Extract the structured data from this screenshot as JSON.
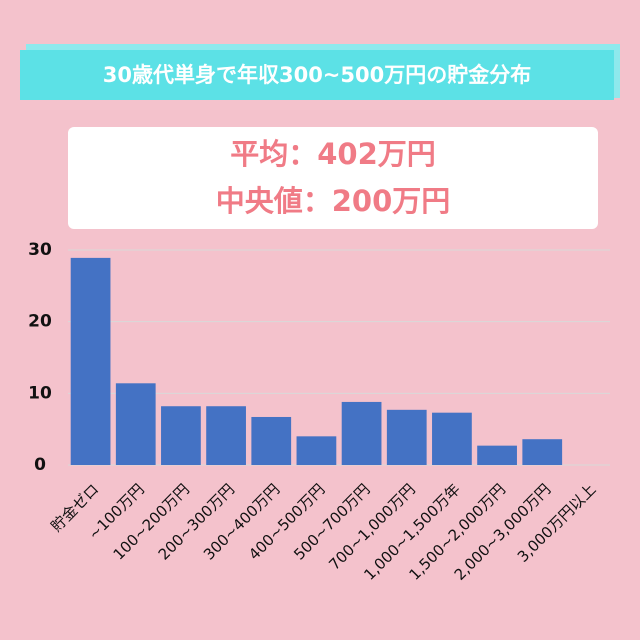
{
  "chart_data": {
    "type": "bar",
    "title": "30歳代単身で年収300~500万円の貯金分布",
    "annotations": [
      "平均：402万円",
      "中央値：200万円"
    ],
    "categories": [
      "貯金ゼロ",
      "~100万円",
      "100~200万円",
      "200~300万円",
      "300~400万円",
      "400~500万円",
      "500~700万円",
      "700~1,000万円",
      "1,000~1,500万年",
      "1,500~2,000万円",
      "2,000~3,000万円",
      "3,000万円以上"
    ],
    "values": [
      28.9,
      11.4,
      8.2,
      8.2,
      6.7,
      4.0,
      8.8,
      7.7,
      7.3,
      2.7,
      3.6,
      0
    ],
    "color": "#4472c4",
    "ylim": [
      0,
      30
    ],
    "yticks": [
      0,
      10,
      20,
      30
    ],
    "grid": true
  }
}
